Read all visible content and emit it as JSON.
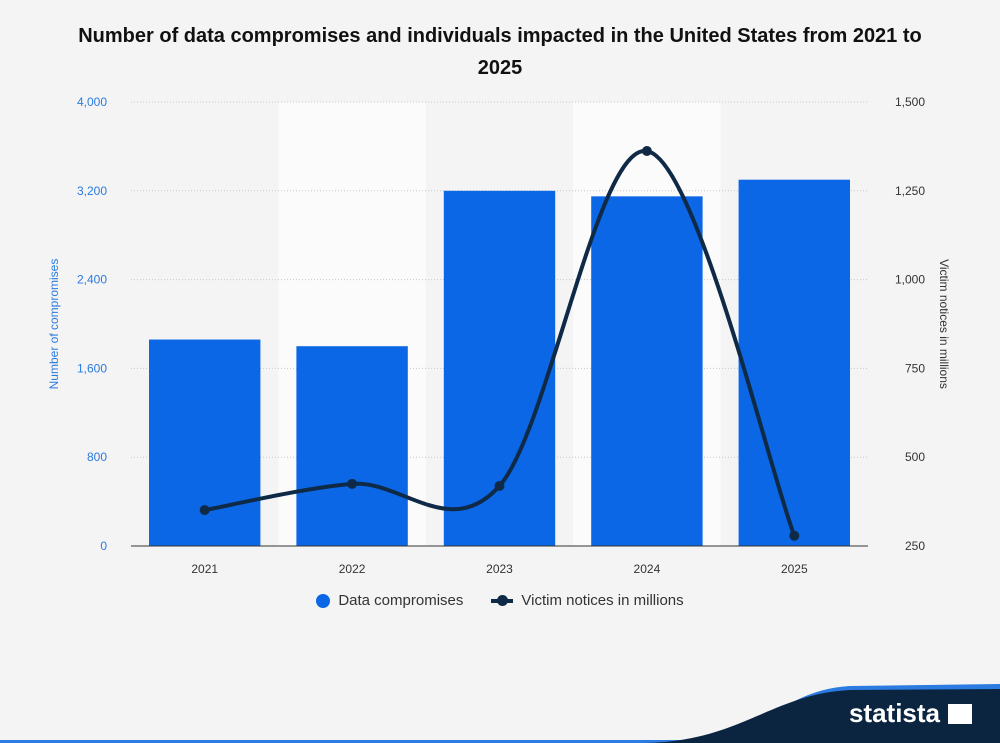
{
  "chart_data": {
    "type": "bar+line",
    "title": "Number of data compromises and individuals impacted in the United States from 2021 to 2025",
    "categories": [
      "2021",
      "2022",
      "2023",
      "2024",
      "2025"
    ],
    "series": [
      {
        "name": "Data compromises",
        "type": "bar",
        "axis": "left",
        "color": "#0b67e6",
        "values": [
          1860,
          1800,
          3200,
          3150,
          3300
        ]
      },
      {
        "name": "Victim notices in millions",
        "type": "line",
        "axis": "right",
        "color": "#0f2a47",
        "values": [
          351,
          425,
          419,
          1362,
          279
        ]
      }
    ],
    "ylabel_left": "Number of compromises",
    "ylabel_right": "Victim notices in millions",
    "ylim_left": [
      0,
      4000
    ],
    "yticks_left": [
      "0",
      "800",
      "1,600",
      "2,400",
      "3,200",
      "4,000"
    ],
    "ylim_right": [
      250,
      1500
    ],
    "yticks_right": [
      "250",
      "500",
      "750",
      "1,000",
      "1,250",
      "1,500"
    ],
    "grid": true,
    "legend": "bottom"
  },
  "branding": {
    "logo": "statista",
    "accent": "#2b7be0",
    "dark": "#0b2540"
  }
}
